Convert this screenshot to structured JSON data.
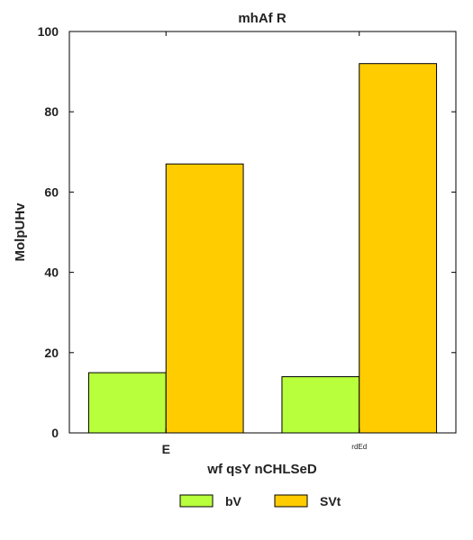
{
  "chart_data": {
    "type": "bar",
    "title": "mhAf R",
    "xlabel": "wf qsY nCHLSeD",
    "ylabel": "MolpUHv",
    "categories": [
      "E",
      "rdEd"
    ],
    "series": [
      {
        "name": "bV",
        "values": [
          15,
          14
        ],
        "color": "#b8ff3c"
      },
      {
        "name": "SVt",
        "values": [
          67,
          92
        ],
        "color": "#ffcc00"
      }
    ],
    "ylim": [
      0,
      100
    ],
    "yticks": [
      0,
      20,
      40,
      60,
      80,
      100
    ],
    "grid": false,
    "legend_position": "bottom-center"
  }
}
